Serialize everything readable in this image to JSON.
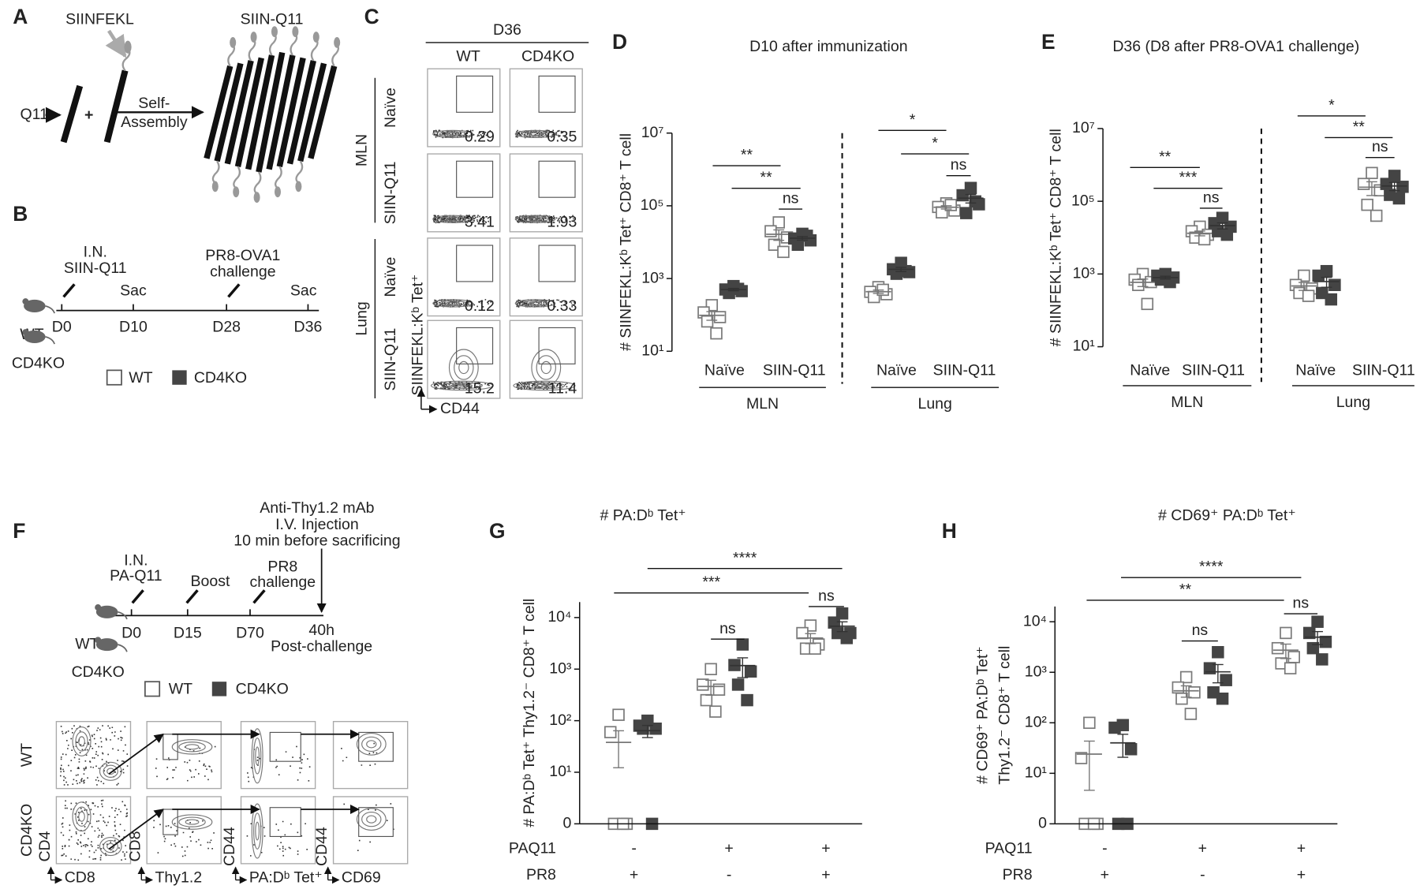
{
  "panel_labels": [
    "A",
    "B",
    "C",
    "D",
    "E",
    "F",
    "G",
    "H"
  ],
  "panel_a": {
    "peptide": "SIINFEKL",
    "product": "SIIN-Q11",
    "monomer": "Q11",
    "plus": "+",
    "process": [
      "Self-",
      "Assembly"
    ]
  },
  "panel_b": {
    "route": [
      "I.N.",
      "SIIN-Q11"
    ],
    "sac": [
      "Sac",
      "Sac"
    ],
    "challenge": [
      "PR8-OVA1",
      "challenge"
    ],
    "days": [
      "D0",
      "D10",
      "D28",
      "D36"
    ],
    "mice": [
      "WT",
      "CD4KO"
    ],
    "legend": [
      "WT",
      "CD4KO"
    ]
  },
  "panel_c": {
    "timepoint": "D36",
    "columns": [
      "WT",
      "CD4KO"
    ],
    "tissues": [
      "MLN",
      "Lung"
    ],
    "rows": [
      "Naïve",
      "SIIN-Q11",
      "Naïve",
      "SIIN-Q11"
    ],
    "percentages": [
      [
        "0.29",
        "0.35"
      ],
      [
        "3.41",
        "1.93"
      ],
      [
        "0.12",
        "0.33"
      ],
      [
        "15.2",
        "11.4"
      ]
    ],
    "y_label": "SIINFEKL:Kᵇ Tet⁺",
    "x_label": "CD44"
  },
  "panel_f": {
    "treatment": [
      "Anti-Thy1.2 mAb",
      "I.V. Injection",
      "10 min before sacrificing"
    ],
    "route": [
      "I.N.",
      "PA-Q11"
    ],
    "boost": "Boost",
    "challenge": [
      "PR8",
      "challenge"
    ],
    "days": [
      "D0",
      "D15",
      "D70",
      "40h"
    ],
    "post": "Post-challenge",
    "mice": [
      "WT",
      "CD4KO"
    ],
    "legend": [
      "WT",
      "CD4KO"
    ],
    "rows": [
      "WT",
      "CD4KO"
    ],
    "axes": [
      [
        "CD4",
        "CD8"
      ],
      [
        "CD8",
        "Thy1.2"
      ],
      [
        "CD44",
        "PA:Dᵇ Tet⁺"
      ],
      [
        "CD44",
        "CD69"
      ]
    ]
  },
  "chart_data": [
    {
      "type": "scatter",
      "title": "D10 after immunization",
      "y_label": [
        "# SIINFEKL:Kᵇ Tet⁺ CD8⁺ T cell"
      ],
      "log": true,
      "ylim": [
        10,
        10000000
      ],
      "yticks": [
        {
          "value": 10,
          "label": "10¹"
        },
        {
          "value": 1000,
          "label": "10³"
        },
        {
          "value": 100000,
          "label": "10⁵"
        },
        {
          "value": 10000000,
          "label": "10⁷"
        }
      ],
      "categories": [
        "Naïve",
        "SIIN-Q11",
        "Naïve",
        "SIIN-Q11"
      ],
      "sections": [
        "MLN",
        "Lung"
      ],
      "significance": [
        "**",
        "**",
        "ns",
        "*",
        "*",
        "ns"
      ],
      "series": [
        {
          "color": "#ffffff",
          "edge_color": "#7a7a7a",
          "values": [
            [
              185,
              117,
              87,
              66,
              31
            ],
            [
              35000,
              20000,
              13500,
              8500,
              5400
            ],
            [
              580,
              430,
              370,
              310,
              490
            ],
            [
              117000,
              93000,
              74000,
              66000,
              105000
            ]
          ]
        },
        {
          "color": "#444444",
          "edge_color": "#444444",
          "values": [
            [
              620,
              500,
              450,
              400,
              520
            ],
            [
              17000,
              12600,
              11200,
              8500,
              15000
            ],
            [
              2700,
              1800,
              1500,
              1350,
              1600
            ],
            [
              310000,
              195000,
              110000,
              63000,
              132000
            ]
          ]
        }
      ]
    },
    {
      "type": "scatter",
      "title": "D36 (D8 after PR8-OVA1 challenge)",
      "y_label": [
        "# SIINFEKL:Kᵇ Tet⁺ CD8⁺ T cell"
      ],
      "log": true,
      "ylim": [
        10,
        10000000
      ],
      "yticks": [
        {
          "value": 10,
          "label": "10¹"
        },
        {
          "value": 1000,
          "label": "10³"
        },
        {
          "value": 100000,
          "label": "10⁵"
        },
        {
          "value": 10000000,
          "label": "10⁷"
        }
      ],
      "categories": [
        "Naïve",
        "SIIN-Q11",
        "Naïve",
        "SIIN-Q11"
      ],
      "sections": [
        "MLN",
        "Lung"
      ],
      "significance": [
        "**",
        "***",
        "ns",
        "*",
        "**",
        "ns"
      ],
      "series": [
        {
          "color": "#ffffff",
          "edge_color": "#7a7a7a",
          "values": [
            [
              1000,
              700,
              600,
              500,
              150
            ],
            [
              20000,
              15000,
              12000,
              10000,
              9000
            ],
            [
              900,
              500,
              400,
              300,
              250
            ],
            [
              600000,
              300000,
              200000,
              80000,
              40000
            ]
          ]
        },
        {
          "color": "#444444",
          "edge_color": "#444444",
          "values": [
            [
              1000,
              900,
              800,
              700,
              600
            ],
            [
              35000,
              25000,
              20000,
              15000,
              12000
            ],
            [
              1200,
              900,
              500,
              300,
              200
            ],
            [
              500000,
              300000,
              250000,
              150000,
              120000
            ]
          ]
        }
      ]
    },
    {
      "type": "scatter",
      "title": "# PA:Dᵇ Tet⁺",
      "y_label": [
        "# PA:Dᵇ Tet⁺ Thy1.2⁻ CD8⁺ T cell"
      ],
      "log": true,
      "ylim": [
        0,
        20000
      ],
      "yticks": [
        0,
        {
          "value": 10,
          "label": "10¹"
        },
        {
          "value": 100,
          "label": "10²"
        },
        {
          "value": 1000,
          "label": "10³"
        },
        {
          "value": 10000,
          "label": "10⁴"
        }
      ],
      "conditions": [
        {
          "label": "PAQ11",
          "values": [
            "-",
            "+",
            "+"
          ]
        },
        {
          "label": "PR8",
          "values": [
            "+",
            "-",
            "+"
          ]
        }
      ],
      "significance": [
        "****",
        "***",
        "ns",
        "ns"
      ],
      "series": [
        {
          "color": "#ffffff",
          "edge_color": "#7a7a7a",
          "values": [
            [
              130,
              60,
              0,
              0,
              0
            ],
            [
              1000,
              500,
              400,
              250,
              150
            ],
            [
              7000,
              5000,
              3000,
              2500,
              2500
            ]
          ]
        },
        {
          "color": "#444444",
          "edge_color": "#444444",
          "values": [
            [
              100,
              80,
              70,
              70,
              0
            ],
            [
              3000,
              1200,
              900,
              500,
              250
            ],
            [
              12000,
              8000,
              5000,
              5000,
              4000
            ]
          ]
        }
      ]
    },
    {
      "type": "scatter",
      "title": "# CD69⁺ PA:Dᵇ Tet⁺",
      "y_label": [
        "# CD69⁺ PA:Dᵇ Tet⁺",
        "Thy1.2⁻ CD8⁺ T cell"
      ],
      "log": true,
      "ylim": [
        0,
        20000
      ],
      "yticks": [
        0,
        {
          "value": 10,
          "label": "10¹"
        },
        {
          "value": 100,
          "label": "10²"
        },
        {
          "value": 1000,
          "label": "10³"
        },
        {
          "value": 10000,
          "label": "10⁴"
        }
      ],
      "conditions": [
        {
          "label": "PAQ11",
          "values": [
            "-",
            "+",
            "+"
          ]
        },
        {
          "label": "PR8",
          "values": [
            "+",
            "-",
            "+"
          ]
        }
      ],
      "significance": [
        "****",
        "**",
        "ns",
        "ns"
      ],
      "series": [
        {
          "color": "#ffffff",
          "edge_color": "#7a7a7a",
          "values": [
            [
              100,
              20,
              0,
              0,
              0
            ],
            [
              800,
              500,
              400,
              300,
              150
            ],
            [
              6000,
              3000,
              2000,
              1500,
              1200
            ]
          ]
        },
        {
          "color": "#444444",
          "edge_color": "#444444",
          "values": [
            [
              90,
              80,
              30,
              0,
              0
            ],
            [
              2500,
              1200,
              700,
              400,
              300
            ],
            [
              10000,
              6000,
              4000,
              3000,
              1800
            ]
          ]
        }
      ]
    }
  ]
}
